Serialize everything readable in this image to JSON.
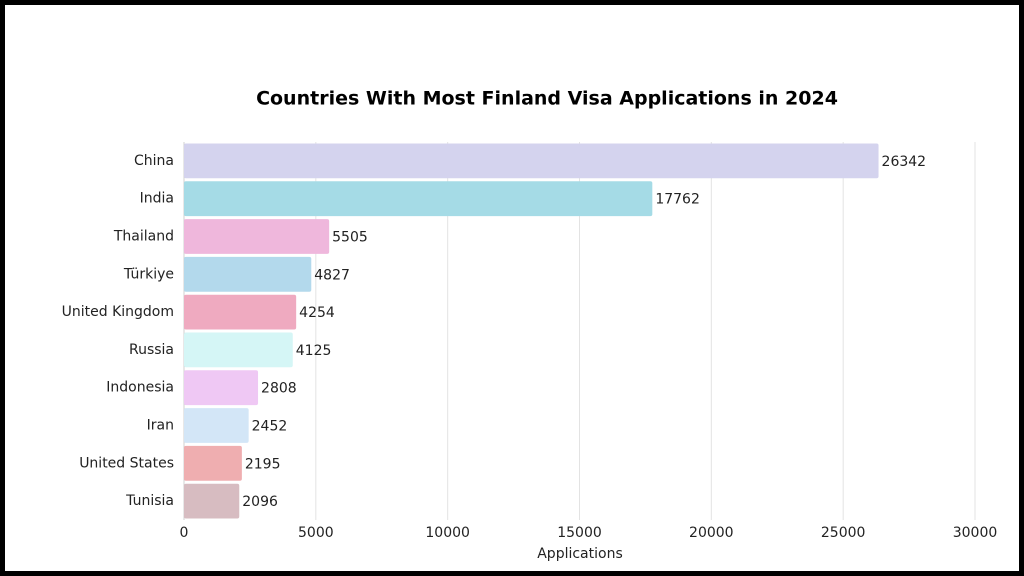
{
  "chart_data": {
    "type": "hbar",
    "title": "Countries With Most Finland Visa Applications in 2024",
    "x_label": "Applications",
    "categories": [
      "China",
      "India",
      "Thailand",
      "Türkiye",
      "United Kingdom",
      "Russia",
      "Indonesia",
      "Iran",
      "United States",
      "Tunisia"
    ],
    "values": [
      26342,
      17762,
      5505,
      4827,
      4254,
      4125,
      2808,
      2452,
      2195,
      2096
    ],
    "colors": [
      "#d4d3ee",
      "#a5dbe6",
      "#efb7dc",
      "#b3d9ec",
      "#efaac0",
      "#d5f6f6",
      "#efc8f4",
      "#d3e6f7",
      "#efaeb0",
      "#d7bcc1"
    ],
    "xlim": [
      0,
      30000
    ],
    "xticks": [
      0,
      5000,
      10000,
      15000,
      20000,
      25000,
      30000
    ],
    "grid": true
  }
}
